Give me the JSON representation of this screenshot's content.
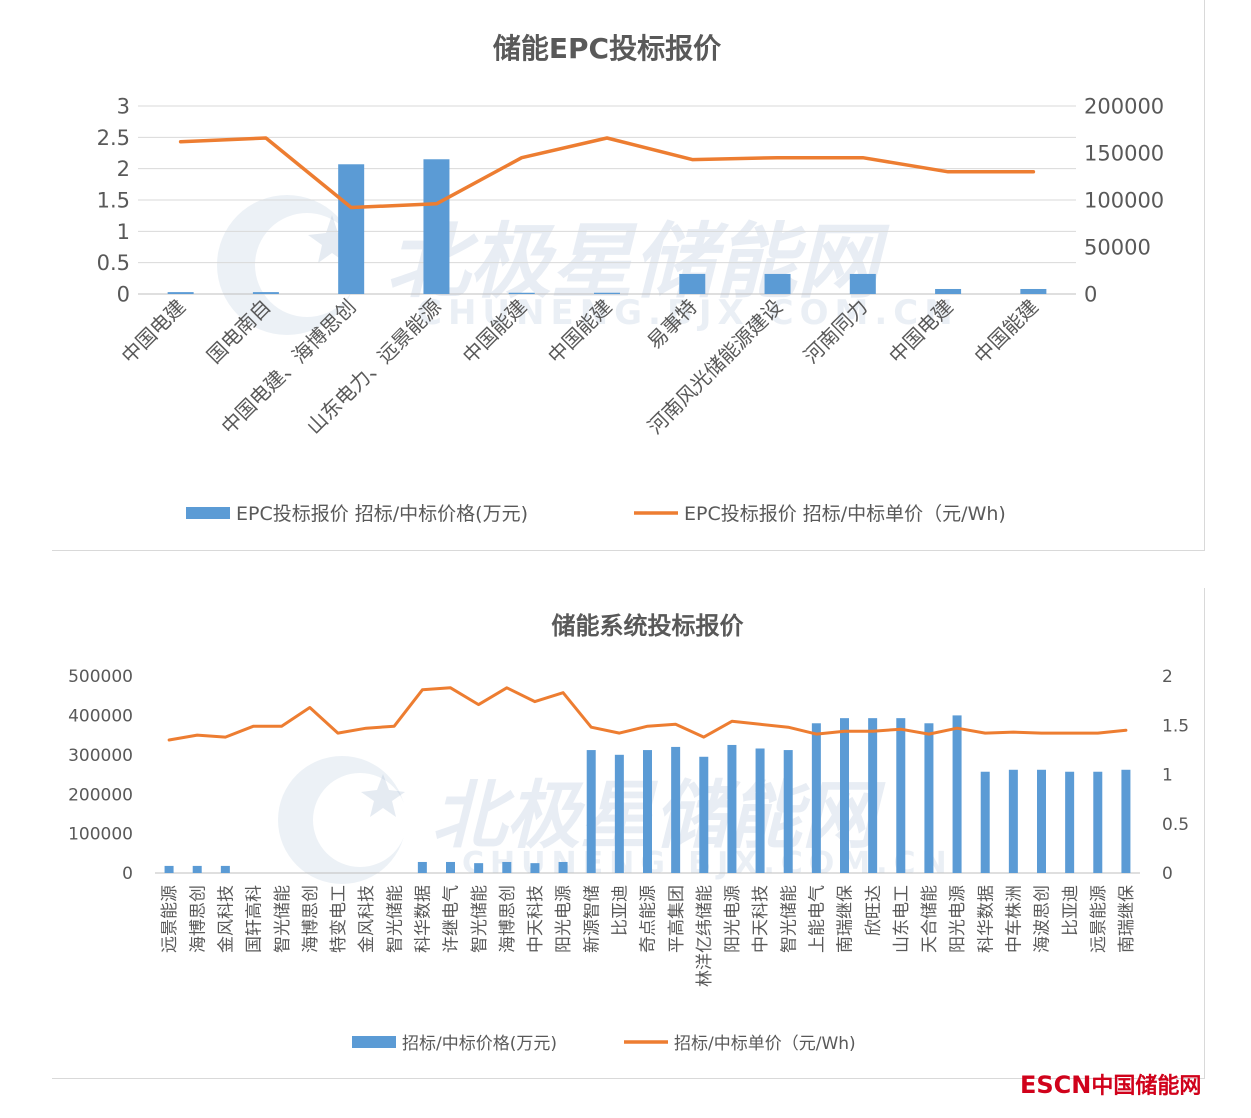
{
  "watermark": {
    "main": "北极星储能网",
    "sub": "CHUNENG.BJX.COM.CN"
  },
  "brand": {
    "latin": "ESCN",
    "cn": "中国储能网"
  },
  "chart_data": [
    {
      "type": "bar",
      "title": "储能EPC投标报价",
      "categories": [
        "中国电建",
        "国电南自",
        "中国电建、海博思创",
        "山东电力、远景能源",
        "中国能建",
        "中国能建",
        "易事特",
        "河南风光储能源建设",
        "河南同力",
        "中国电建",
        "中国能建"
      ],
      "series": [
        {
          "name": "EPC投标报价 招标/中标价格(万元)",
          "kind": "bar",
          "axis": "left",
          "color": "#5b9bd5",
          "values": [
            0.03,
            0.03,
            2.07,
            2.15,
            0.02,
            0.02,
            0.32,
            0.32,
            0.32,
            0.08,
            0.08
          ]
        },
        {
          "name": "EPC投标报价 招标/中标单价（元/Wh)",
          "kind": "line",
          "axis": "right",
          "color": "#ed7d31",
          "values": [
            162000,
            166000,
            92000,
            96000,
            145000,
            166000,
            143000,
            145000,
            145000,
            130000,
            130000
          ]
        }
      ],
      "left_axis": {
        "min": 0,
        "max": 3,
        "ticks": [
          "0",
          "0.5",
          "1",
          "1.5",
          "2",
          "2.5",
          "3"
        ]
      },
      "right_axis": {
        "min": 0,
        "max": 200000,
        "ticks": [
          "0",
          "50000",
          "100000",
          "150000",
          "200000"
        ]
      },
      "grid": true,
      "legend": "bottom"
    },
    {
      "type": "bar",
      "title": "储能系统投标报价",
      "categories": [
        "远景能源",
        "海博思创",
        "金风科技",
        "国轩高科",
        "智光储能",
        "海博思创",
        "特变电工",
        "金风科技",
        "智光储能",
        "科华数据",
        "许继电气",
        "智光储能",
        "海博思创",
        "中天科技",
        "阳光电源",
        "新源智储",
        "比亚迪",
        "奇点能源",
        "平高集团",
        "林洋亿纬储能",
        "阳光电源",
        "中天科技",
        "智光储能",
        "上能电气",
        "南瑞继保",
        "欣旺达",
        "山东电工",
        "天合储能",
        "阳光电源",
        "科华数据",
        "中车株洲",
        "海波思创",
        "比亚迪",
        "远景能源",
        "南瑞继保"
      ],
      "series": [
        {
          "name": "招标/中标价格(万元)",
          "kind": "bar",
          "axis": "left",
          "color": "#5b9bd5",
          "values": [
            18000,
            18000,
            18000,
            null,
            null,
            null,
            null,
            null,
            null,
            28000,
            28000,
            25000,
            28000,
            25000,
            28000,
            312000,
            300000,
            312000,
            320000,
            295000,
            325000,
            316000,
            312000,
            380000,
            393000,
            393000,
            393000,
            380000,
            400000,
            257000,
            262000,
            262000,
            257000,
            257000,
            262000
          ]
        },
        {
          "name": "招标/中标单价（元/Wh)",
          "kind": "line",
          "axis": "right",
          "color": "#ed7d31",
          "values": [
            1.35,
            1.4,
            1.38,
            1.49,
            1.49,
            1.68,
            1.42,
            1.47,
            1.49,
            1.86,
            1.88,
            1.71,
            1.88,
            1.74,
            1.83,
            1.48,
            1.42,
            1.49,
            1.51,
            1.38,
            1.54,
            1.51,
            1.48,
            1.41,
            1.44,
            1.44,
            1.46,
            1.41,
            1.47,
            1.42,
            1.43,
            1.42,
            1.42,
            1.42,
            1.45
          ]
        }
      ],
      "left_axis": {
        "min": 0,
        "max": 500000,
        "ticks": [
          "0",
          "100000",
          "200000",
          "300000",
          "400000",
          "500000"
        ]
      },
      "right_axis": {
        "min": 0,
        "max": 2,
        "ticks": [
          "0",
          "0.5",
          "1",
          "1.5",
          "2"
        ]
      },
      "grid": false,
      "legend": "bottom"
    }
  ]
}
